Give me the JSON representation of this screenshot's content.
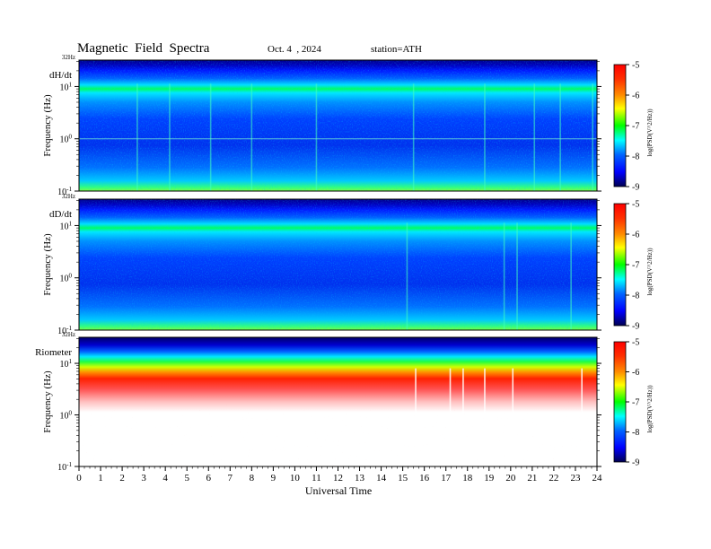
{
  "header": {
    "title": "Magnetic  Field  Spectra",
    "date": "Oct. 4  , 2024",
    "station": "station=ATH"
  },
  "colorbar": {
    "label": "log(PSD(V^2/Hz))",
    "ticks": [
      "-5",
      "-6",
      "-7",
      "-8",
      "-9"
    ],
    "stops": [
      "#ff0000",
      "#ff8c00",
      "#ffff00",
      "#00ff00",
      "#00ffff",
      "#0064ff",
      "#0000ff",
      "#000060"
    ]
  },
  "x_axis": {
    "label": "Universal Time",
    "ticks": [
      "0",
      "1",
      "2",
      "3",
      "4",
      "5",
      "6",
      "7",
      "8",
      "9",
      "10",
      "11",
      "12",
      "13",
      "14",
      "15",
      "16",
      "17",
      "18",
      "19",
      "20",
      "21",
      "22",
      "23",
      "24"
    ]
  },
  "chart_data": [
    {
      "type": "heatmap",
      "panel_label": "dH/dt",
      "top_label": "32Hz",
      "ylabel": "Frequency  (Hz)",
      "y_ticks": [
        "10^1",
        "10^0",
        "10^-1"
      ],
      "ylim_hz": [
        0.1,
        32
      ],
      "xlim_ut": [
        0,
        24
      ],
      "value_range": [
        -9,
        -5
      ],
      "description_levels": {
        "band_8hz": -7,
        "background": -8.3,
        "low_freq_edge": -7.5
      },
      "spikes_ut": [
        2.7,
        4.2,
        6.1,
        8.0,
        11.0,
        15.5,
        18.8,
        21.1,
        22.3,
        23.8
      ]
    },
    {
      "type": "heatmap",
      "panel_label": "dD/dt",
      "top_label": "32Hz",
      "ylabel": "Frequency  (Hz)",
      "y_ticks": [
        "10^1",
        "10^0",
        "10^-1"
      ],
      "ylim_hz": [
        0.1,
        32
      ],
      "xlim_ut": [
        0,
        24
      ],
      "value_range": [
        -9,
        -5
      ],
      "description_levels": {
        "band_8hz": -7,
        "background": -8.4,
        "low_freq_edge": -7.6
      },
      "spikes_ut": [
        15.2,
        19.7,
        20.3,
        22.8
      ]
    },
    {
      "type": "heatmap",
      "panel_label": "Riometer",
      "top_label": "32Hz",
      "ylabel": "Frequency  (Hz)",
      "y_ticks": [
        "10^1",
        "10^0",
        "10^-1"
      ],
      "ylim_hz": [
        0.1,
        32
      ],
      "xlim_ut": [
        0,
        24
      ],
      "value_range": [
        -9,
        -5
      ],
      "description_levels": {
        "top": -8.8,
        "mid": -6,
        "low": -5
      },
      "spikes_ut": [
        15.6,
        17.2,
        17.8,
        18.8,
        20.1,
        23.3
      ]
    }
  ]
}
